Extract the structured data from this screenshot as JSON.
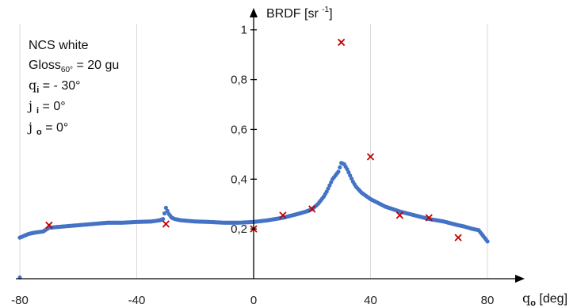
{
  "chart_data": {
    "type": "scatter",
    "title": "",
    "xlabel": "q",
    "xlabel_sub": "o",
    "xlabel_unit": " [deg]",
    "ylabel": "BRDF [sr ",
    "ylabel_sup": "-1",
    "ylabel_end": "]",
    "xlim": [
      -80,
      80
    ],
    "ylim": [
      0,
      1.05
    ],
    "x_ticks": [
      -80,
      -40,
      0,
      40,
      80
    ],
    "x_tick_labels": [
      "-80",
      "-40",
      "0",
      "40",
      "80"
    ],
    "y_ticks": [
      0.2,
      0.4,
      0.6,
      0.8,
      1.0
    ],
    "y_tick_labels": [
      "0,2",
      "0,4",
      "0,6",
      "0,8",
      "1"
    ],
    "grid": "vertical",
    "annotations": {
      "line1": "NCS white",
      "line2_main": "Gloss",
      "line2_sub": "60°",
      "line2_end": " = 20 gu",
      "line3": "q",
      "line3_sub": "i",
      "line3_end": " = - 30°",
      "line4": "j ",
      "line4_sub": "i",
      "line4_end": " = 0°",
      "line5": "j ",
      "line5_sub": "o",
      "line5_end": " = 0°"
    },
    "series": [
      {
        "marker": "dot",
        "color": "#4472C4",
        "x": [
          -80,
          -79,
          -77,
          -75,
          -72,
          -70,
          -65,
          -60,
          -55,
          -50,
          -45,
          -40,
          -35,
          -32,
          -31,
          -30,
          -29,
          -28,
          -27,
          -25,
          -20,
          -15,
          -10,
          -5,
          0,
          5,
          10,
          15,
          18,
          20,
          22,
          24,
          25,
          26,
          27,
          28,
          29,
          30,
          31,
          32,
          33,
          34,
          35,
          37,
          40,
          45,
          50,
          55,
          60,
          65,
          70,
          72,
          75,
          77,
          78,
          79,
          80
        ],
        "y": [
          0.165,
          0.17,
          0.18,
          0.185,
          0.19,
          0.205,
          0.21,
          0.215,
          0.22,
          0.225,
          0.225,
          0.228,
          0.23,
          0.235,
          0.24,
          0.285,
          0.26,
          0.245,
          0.24,
          0.235,
          0.23,
          0.228,
          0.225,
          0.225,
          0.228,
          0.235,
          0.245,
          0.26,
          0.27,
          0.28,
          0.3,
          0.33,
          0.35,
          0.375,
          0.4,
          0.415,
          0.43,
          0.465,
          0.46,
          0.44,
          0.415,
          0.39,
          0.37,
          0.345,
          0.32,
          0.29,
          0.27,
          0.255,
          0.24,
          0.23,
          0.215,
          0.21,
          0.2,
          0.195,
          0.18,
          0.165,
          0.15
        ]
      },
      {
        "marker": "x",
        "color": "#C00000",
        "x": [
          -70,
          -30,
          0,
          10,
          20,
          30,
          40,
          50,
          60,
          70
        ],
        "y": [
          0.215,
          0.22,
          0.2,
          0.255,
          0.28,
          0.95,
          0.49,
          0.255,
          0.245,
          0.165
        ]
      }
    ],
    "extra_point": {
      "x": -80,
      "y": 0.005
    }
  }
}
